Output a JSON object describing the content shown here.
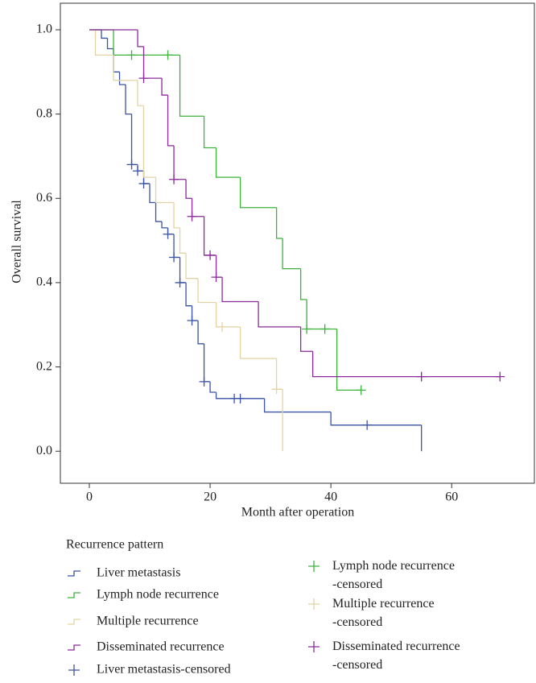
{
  "chart_data": {
    "type": "survival",
    "xlabel": "Month after operation",
    "ylabel": "Overall survival",
    "legend_title": "Recurrence pattern",
    "xlim": [
      -4.8,
      73.7
    ],
    "ylim": [
      -0.076,
      1.063
    ],
    "xticks": [
      0,
      20,
      40,
      60
    ],
    "yticks": [
      {
        "value": 0,
        "label": "0.0"
      },
      {
        "value": 0.2,
        "label": "0.2"
      },
      {
        "value": 0.4,
        "label": "0.4"
      },
      {
        "value": 0.6,
        "label": "0.6"
      },
      {
        "value": 0.8,
        "label": "0.8"
      },
      {
        "value": 1,
        "label": "1.0"
      }
    ],
    "series": [
      {
        "name": "Liver metastasis",
        "color": "#3a53a4",
        "x": [
          0,
          2,
          3,
          4,
          5,
          6,
          7,
          8,
          9,
          10,
          11,
          12,
          13,
          14,
          15,
          16,
          17,
          18,
          19,
          20,
          21,
          29,
          40,
          55
        ],
        "values": [
          1,
          0.98,
          0.955,
          0.9,
          0.87,
          0.8,
          0.68,
          0.665,
          0.635,
          0.59,
          0.545,
          0.53,
          0.515,
          0.46,
          0.4,
          0.345,
          0.31,
          0.255,
          0.165,
          0.14,
          0.125,
          0.093,
          0.062,
          0
        ]
      },
      {
        "name": "Lymph node recurrence",
        "color": "#3bb33b",
        "x": [
          0,
          4,
          15,
          19,
          21,
          25,
          31,
          32,
          35,
          36,
          41,
          45
        ],
        "values": [
          1,
          0.94,
          0.795,
          0.72,
          0.65,
          0.578,
          0.505,
          0.433,
          0.36,
          0.29,
          0.145,
          0.145
        ]
      },
      {
        "name": "Multiple recurrence",
        "color": "#e3d3a4",
        "x": [
          0,
          1,
          4,
          8,
          9,
          11,
          14,
          15,
          16,
          18,
          21,
          25,
          31,
          32
        ],
        "values": [
          1,
          0.94,
          0.88,
          0.82,
          0.65,
          0.59,
          0.53,
          0.47,
          0.41,
          0.353,
          0.295,
          0.22,
          0.147,
          0
        ]
      },
      {
        "name": "Disseminated recurrence",
        "color": "#8b2a9b",
        "x": [
          0,
          8,
          9,
          12,
          13,
          14,
          16,
          17,
          19,
          21,
          22,
          28,
          35,
          37,
          68
        ],
        "values": [
          1,
          0.96,
          0.885,
          0.845,
          0.725,
          0.645,
          0.6,
          0.557,
          0.465,
          0.413,
          0.355,
          0.295,
          0.237,
          0.177,
          0.177
        ]
      },
      {
        "name": "Liver metastasis-censored",
        "color": "#3a53a4",
        "marker": "+",
        "x": [
          7,
          8,
          9,
          13,
          14,
          15,
          17,
          19,
          24,
          25,
          46
        ],
        "values": [
          0.68,
          0.665,
          0.635,
          0.515,
          0.46,
          0.4,
          0.31,
          0.165,
          0.125,
          0.125,
          0.062
        ]
      },
      {
        "name": "Lymph node recurrence -censored",
        "color": "#3bb33b",
        "marker": "+",
        "x": [
          7,
          13,
          36,
          39,
          45
        ],
        "values": [
          0.94,
          0.94,
          0.29,
          0.29,
          0.145
        ]
      },
      {
        "name": "Multiple recurrence -censored",
        "color": "#e3d3a4",
        "marker": "+",
        "x": [
          22,
          31
        ],
        "values": [
          0.295,
          0.147
        ]
      },
      {
        "name": "Disseminated recurrence -censored",
        "color": "#8b2a9b",
        "marker": "+",
        "x": [
          9,
          14,
          17,
          20,
          21,
          55,
          68
        ],
        "values": [
          0.885,
          0.645,
          0.557,
          0.465,
          0.413,
          0.177,
          0.177
        ]
      }
    ]
  }
}
